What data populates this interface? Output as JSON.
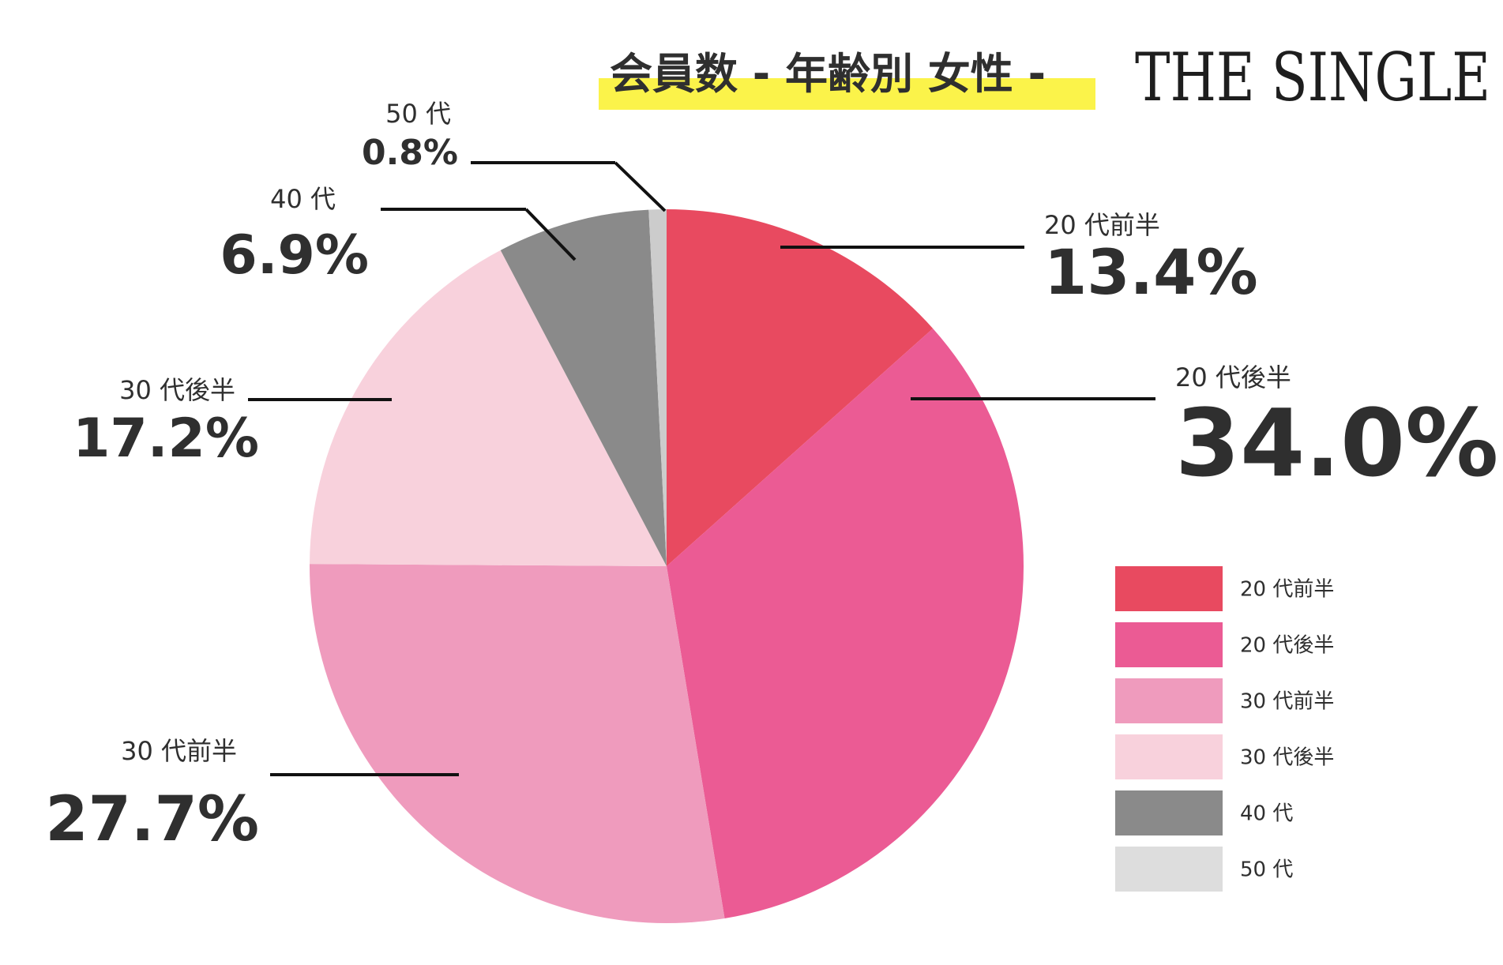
{
  "chart_data": {
    "type": "pie",
    "title": "会員数 - 年齢別 女性 -",
    "brand": "THE SINGLE",
    "title_highlight_color": "#fbf34a",
    "slices": [
      {
        "label": "20 代前半",
        "value": 13.4,
        "value_label": "13.4%",
        "color": "#e84a60"
      },
      {
        "label": "20 代後半",
        "value": 34.0,
        "value_label": "34.0%",
        "color": "#eb5b94"
      },
      {
        "label": "30 代前半",
        "value": 27.7,
        "value_label": "27.7%",
        "color": "#ef9bbd"
      },
      {
        "label": "30 代後半",
        "value": 17.2,
        "value_label": "17.2%",
        "color": "#f8d1dc"
      },
      {
        "label": "40 代",
        "value": 6.9,
        "value_label": "6.9%",
        "color": "#8a8a8a"
      },
      {
        "label": "50 代",
        "value": 0.8,
        "value_label": "0.8%",
        "color": "#cccccc"
      }
    ],
    "legend": [
      {
        "label": "20 代前半",
        "color": "#e84a60"
      },
      {
        "label": "20 代後半",
        "color": "#eb5b94"
      },
      {
        "label": "30 代前半",
        "color": "#ef9bbd"
      },
      {
        "label": "30 代後半",
        "color": "#f8d1dc"
      },
      {
        "label": "40 代",
        "color": "#8a8a8a"
      },
      {
        "label": "50 代",
        "color": "#dddddd"
      }
    ],
    "legend_placement": "right",
    "start_angle": "12 o'clock",
    "direction": "clockwise"
  }
}
